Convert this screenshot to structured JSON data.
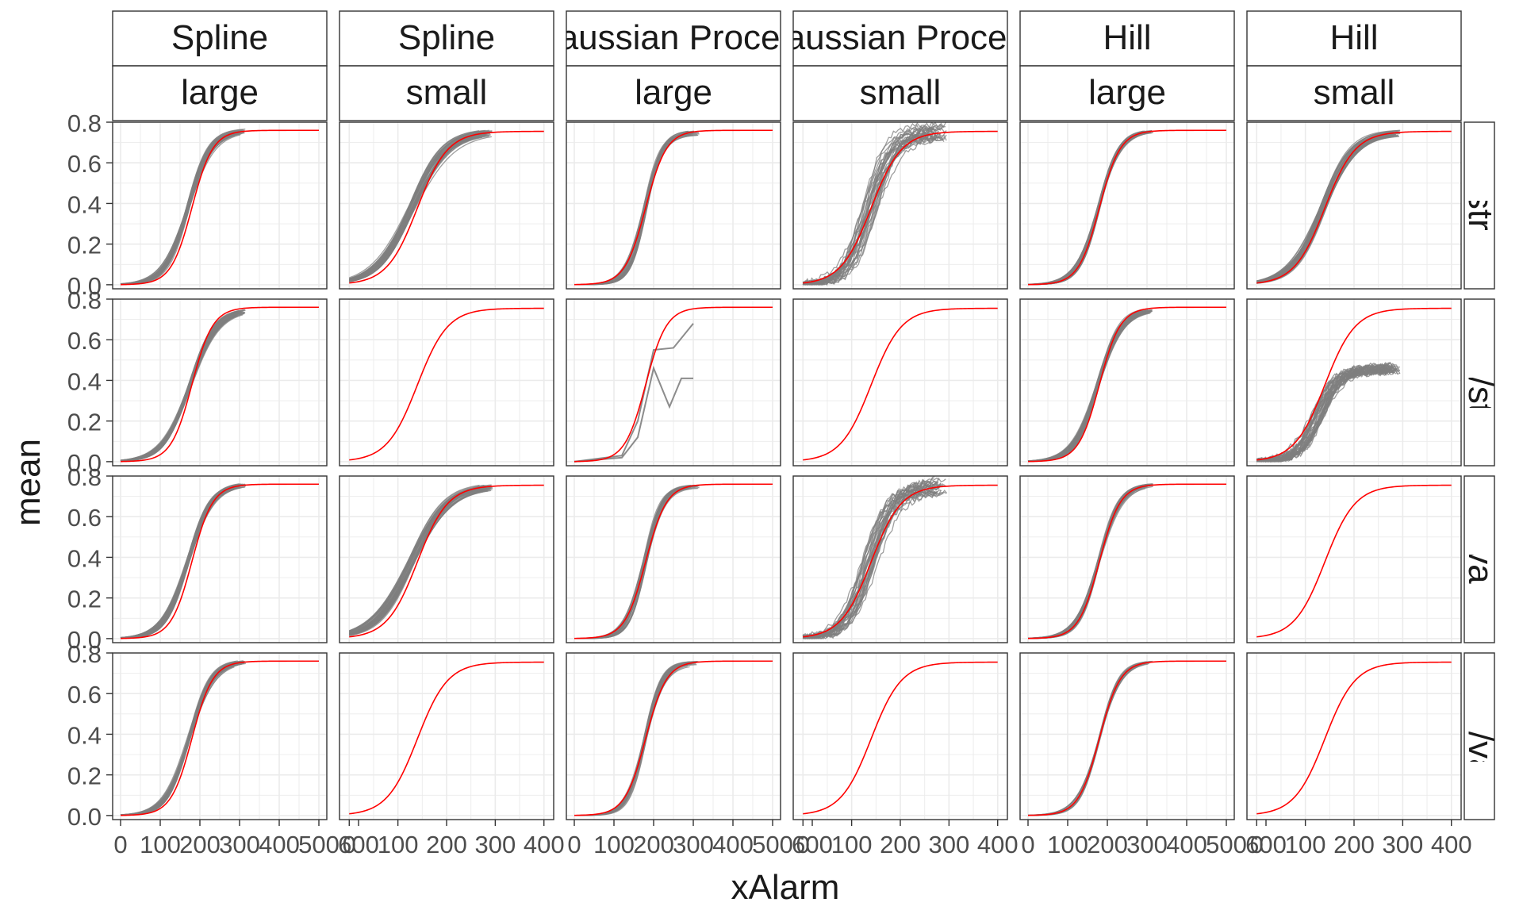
{
  "chart_data": {
    "type": "line",
    "title": "",
    "xlabel": "xAlarm",
    "ylabel": "mean",
    "grid": true,
    "legend": "none",
    "colors": {
      "reference": "#ff0000",
      "simulations": "#7f7f7f",
      "panel_border": "#333333",
      "gridline": "#ebebeb",
      "strip_fill": "#ffffff",
      "tick_text": "#4d4d4d",
      "title_text": "#1a1a1a"
    },
    "y_ticks": [
      "0.0",
      "0.2",
      "0.4",
      "0.6",
      "0.8"
    ],
    "y_tick_values": [
      0,
      0.2,
      0.4,
      0.6,
      0.8
    ],
    "ylim": [
      -0.02,
      0.8
    ],
    "columns": [
      {
        "method": "Spline",
        "size": "large",
        "xlim": [
          -20,
          520
        ],
        "x_ticks": [
          "0",
          "100",
          "200",
          "300",
          "400",
          "500",
          "600"
        ],
        "x_tick_values": [
          0,
          100,
          200,
          300,
          400,
          500,
          600
        ]
      },
      {
        "method": "Spline",
        "size": "small",
        "xlim": [
          -20,
          420
        ],
        "x_ticks": [
          "0",
          "100",
          "200",
          "300",
          "400"
        ],
        "x_tick_values": [
          0,
          100,
          200,
          300,
          400
        ]
      },
      {
        "method": "Gaussian Process",
        "size": "large",
        "xlim": [
          -20,
          520
        ],
        "x_ticks": [
          "0",
          "100",
          "200",
          "300",
          "400",
          "500",
          "600"
        ],
        "x_tick_values": [
          0,
          100,
          200,
          300,
          400,
          500,
          600
        ]
      },
      {
        "method": "Gaussian Process",
        "size": "small",
        "xlim": [
          -20,
          420
        ],
        "x_ticks": [
          "0",
          "100",
          "200",
          "300",
          "400"
        ],
        "x_tick_values": [
          0,
          100,
          200,
          300,
          400
        ]
      },
      {
        "method": "Hill",
        "size": "large",
        "xlim": [
          -20,
          520
        ],
        "x_ticks": [
          "0",
          "100",
          "200",
          "300",
          "400",
          "500",
          "600"
        ],
        "x_tick_values": [
          0,
          100,
          200,
          300,
          400,
          500,
          600
        ]
      },
      {
        "method": "Hill",
        "size": "small",
        "xlim": [
          -20,
          420
        ],
        "x_ticks": [
          "0",
          "100",
          "200",
          "300",
          "400"
        ],
        "x_tick_values": [
          0,
          100,
          200,
          300,
          400
        ]
      }
    ],
    "rows": [
      {
        "label": "true/strong"
      },
      {
        "label": "wrong/strong"
      },
      {
        "label": "true/vague"
      },
      {
        "label": "wrong/vague"
      }
    ],
    "reference_curve": {
      "name": "",
      "large": {
        "top": 0.76,
        "mid": 180,
        "slope": 0.038,
        "x": [
          0,
          500
        ]
      },
      "small": {
        "top": 0.755,
        "mid": 140,
        "slope": 0.032,
        "x": [
          0,
          400
        ]
      }
    },
    "panels": [
      {
        "row": 0,
        "col": 0,
        "sim": {
          "n": 40,
          "x": [
            0,
            310
          ],
          "top": 0.76,
          "mid": 170,
          "slope": 0.034,
          "spread": 0.012
        }
      },
      {
        "row": 0,
        "col": 1,
        "sim": {
          "n": 40,
          "x": [
            0,
            290
          ],
          "top": 0.755,
          "mid": 128,
          "slope": 0.027,
          "spread": 0.02
        }
      },
      {
        "row": 0,
        "col": 2,
        "sim": {
          "n": 25,
          "x": [
            0,
            310
          ],
          "top": 0.75,
          "mid": 178,
          "slope": 0.045,
          "spread": 0.015
        }
      },
      {
        "row": 0,
        "col": 3,
        "sim": {
          "n": 30,
          "x": [
            0,
            290
          ],
          "top": 0.755,
          "mid": 138,
          "slope": 0.04,
          "spread": 0.05
        }
      },
      {
        "row": 0,
        "col": 4,
        "sim": {
          "n": 30,
          "x": [
            0,
            310
          ],
          "top": 0.76,
          "mid": 178,
          "slope": 0.037,
          "spread": 0.01
        }
      },
      {
        "row": 0,
        "col": 5,
        "sim": {
          "n": 40,
          "x": [
            0,
            290
          ],
          "top": 0.75,
          "mid": 135,
          "slope": 0.03,
          "spread": 0.02
        }
      },
      {
        "row": 1,
        "col": 0,
        "sim": {
          "n": 40,
          "x": [
            0,
            310
          ],
          "top": 0.75,
          "mid": 175,
          "slope": 0.03,
          "spread": 0.012
        }
      },
      {
        "row": 1,
        "col": 1,
        "sim": null
      },
      {
        "row": 1,
        "col": 2,
        "sim": {
          "n": 0,
          "x": [
            0,
            310
          ]
        },
        "gp_lines": [
          {
            "x": [
              0,
              120,
              160,
              200,
              250,
              300
            ],
            "y": [
              0,
              0.03,
              0.2,
              0.55,
              0.56,
              0.68
            ]
          },
          {
            "x": [
              0,
              120,
              160,
              200,
              240,
              270,
              300
            ],
            "y": [
              0,
              0.02,
              0.12,
              0.46,
              0.27,
              0.41,
              0.41
            ]
          }
        ]
      },
      {
        "row": 1,
        "col": 3,
        "sim": null
      },
      {
        "row": 1,
        "col": 4,
        "sim": {
          "n": 40,
          "x": [
            0,
            310
          ],
          "top": 0.75,
          "mid": 175,
          "slope": 0.034,
          "spread": 0.012
        }
      },
      {
        "row": 1,
        "col": 5,
        "sim": {
          "n": 40,
          "x": [
            0,
            290
          ],
          "top": 0.455,
          "mid": 125,
          "slope": 0.045,
          "spread": 0.04
        }
      },
      {
        "row": 2,
        "col": 0,
        "sim": {
          "n": 40,
          "x": [
            0,
            310
          ],
          "top": 0.76,
          "mid": 170,
          "slope": 0.034,
          "spread": 0.012
        }
      },
      {
        "row": 2,
        "col": 1,
        "sim": {
          "n": 40,
          "x": [
            0,
            290
          ],
          "top": 0.755,
          "mid": 128,
          "slope": 0.027,
          "spread": 0.02
        }
      },
      {
        "row": 2,
        "col": 2,
        "sim": {
          "n": 25,
          "x": [
            0,
            310
          ],
          "top": 0.75,
          "mid": 178,
          "slope": 0.045,
          "spread": 0.015
        }
      },
      {
        "row": 2,
        "col": 3,
        "sim": {
          "n": 30,
          "x": [
            0,
            290
          ],
          "top": 0.75,
          "mid": 138,
          "slope": 0.04,
          "spread": 0.05
        }
      },
      {
        "row": 2,
        "col": 4,
        "sim": {
          "n": 30,
          "x": [
            0,
            310
          ],
          "top": 0.76,
          "mid": 178,
          "slope": 0.037,
          "spread": 0.01
        }
      },
      {
        "row": 2,
        "col": 5,
        "sim": null
      },
      {
        "row": 3,
        "col": 0,
        "sim": {
          "n": 40,
          "x": [
            0,
            310
          ],
          "top": 0.76,
          "mid": 172,
          "slope": 0.034,
          "spread": 0.012
        }
      },
      {
        "row": 3,
        "col": 1,
        "sim": null
      },
      {
        "row": 3,
        "col": 2,
        "sim": {
          "n": 25,
          "x": [
            0,
            310
          ],
          "top": 0.75,
          "mid": 178,
          "slope": 0.045,
          "spread": 0.015
        }
      },
      {
        "row": 3,
        "col": 3,
        "sim": null
      },
      {
        "row": 3,
        "col": 4,
        "sim": {
          "n": 15,
          "x": [
            0,
            310
          ],
          "top": 0.76,
          "mid": 180,
          "slope": 0.038,
          "spread": 0.006
        }
      },
      {
        "row": 3,
        "col": 5,
        "sim": null
      }
    ]
  }
}
